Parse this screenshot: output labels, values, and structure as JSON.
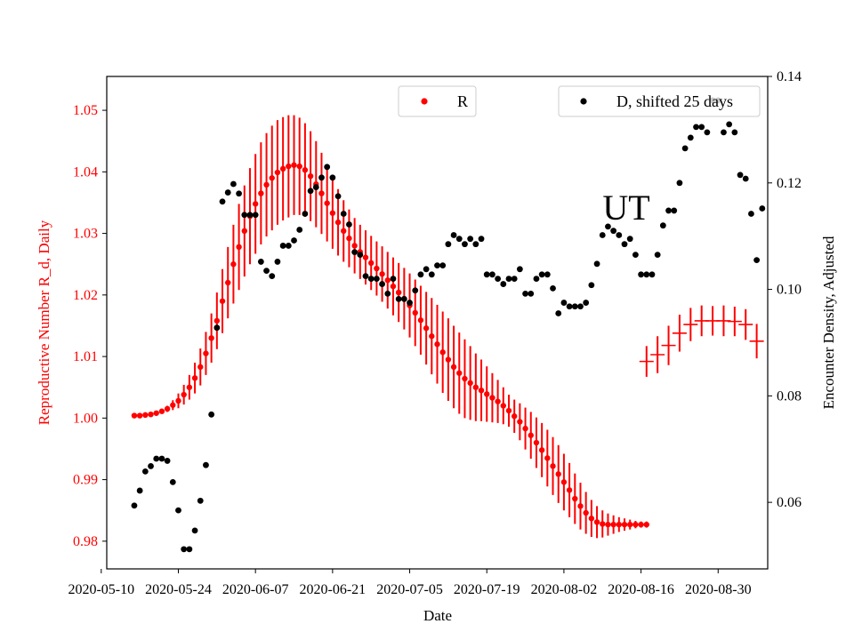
{
  "chart_data": {
    "type": "scatter",
    "xlabel": "Date",
    "ylabel_left": "Reproductive Number R_d, Daily",
    "ylabel_right": "Encounter Density, Adjusted",
    "annotation": "UT",
    "ylim_left": [
      0.9755,
      1.0555
    ],
    "ylim_right": [
      0.0475,
      0.14
    ],
    "xlim": [
      "2020-05-11",
      "2020-09-08"
    ],
    "x_ticks": [
      "2020-05-10",
      "2020-05-24",
      "2020-06-07",
      "2020-06-21",
      "2020-07-05",
      "2020-07-19",
      "2020-08-02",
      "2020-08-16",
      "2020-08-30"
    ],
    "y_ticks_left": [
      "0.98",
      "0.99",
      "1.00",
      "1.01",
      "1.02",
      "1.03",
      "1.04",
      "1.05"
    ],
    "y_ticks_right": [
      "0.06",
      "0.08",
      "0.10",
      "0.12",
      "0.14"
    ],
    "legend_left": "R",
    "legend_right": "D, shifted 25 days",
    "colors": {
      "R": "#ff0000",
      "D": "#000000",
      "left_axis": "#ff0000"
    },
    "r_start": "2020-05-16",
    "r_series_1": {
      "values": [
        1.0004,
        1.0004,
        1.0005,
        1.0006,
        1.0008,
        1.0011,
        1.0015,
        1.0021,
        1.0028,
        1.0038,
        1.005,
        1.0065,
        1.0083,
        1.0105,
        1.013,
        1.0158,
        1.019,
        1.022,
        1.025,
        1.0278,
        1.0304,
        1.0328,
        1.0348,
        1.0365,
        1.0379,
        1.039,
        1.0399,
        1.0405,
        1.0409,
        1.0411,
        1.0409,
        1.0403,
        1.0393,
        1.038,
        1.0365,
        1.0349,
        1.0333,
        1.0318,
        1.0304,
        1.0292,
        1.028,
        1.027,
        1.0261,
        1.0252,
        1.0243,
        1.0234,
        1.0224,
        1.0214,
        1.0204,
        1.0194,
        1.0183,
        1.0171,
        1.0159,
        1.0146,
        1.0133,
        1.012,
        1.0107,
        1.0095,
        1.0083,
        1.0073,
        1.0064,
        1.0057,
        1.005,
        1.0045,
        1.0039,
        1.0033,
        1.0027,
        1.002,
        1.0012,
        1.0003,
        0.9994,
        0.9983,
        0.9972,
        0.996,
        0.9948,
        0.9935,
        0.9922,
        0.9909,
        0.9896,
        0.9883,
        0.9869,
        0.9857,
        0.9846,
        0.9837,
        0.9831,
        0.9828,
        0.9827,
        0.9827,
        0.9827,
        0.9827,
        0.9827,
        0.9827,
        0.9827,
        0.9827
      ],
      "errors": [
        0.0002,
        0.0002,
        0.0002,
        0.0002,
        0.0002,
        0.0003,
        0.0005,
        0.0008,
        0.0012,
        0.0016,
        0.002,
        0.0025,
        0.003,
        0.0035,
        0.004,
        0.0046,
        0.0052,
        0.0058,
        0.0064,
        0.007,
        0.0074,
        0.0078,
        0.0081,
        0.0083,
        0.0084,
        0.0085,
        0.0085,
        0.0084,
        0.0083,
        0.0081,
        0.0079,
        0.0076,
        0.0073,
        0.007,
        0.0066,
        0.0062,
        0.0058,
        0.0054,
        0.005,
        0.0047,
        0.0045,
        0.0044,
        0.0044,
        0.0044,
        0.0044,
        0.0045,
        0.0046,
        0.0047,
        0.0048,
        0.005,
        0.0052,
        0.0054,
        0.0056,
        0.0059,
        0.0062,
        0.0064,
        0.0066,
        0.0067,
        0.0067,
        0.0066,
        0.0064,
        0.006,
        0.0055,
        0.005,
        0.0045,
        0.004,
        0.0035,
        0.003,
        0.0026,
        0.0027,
        0.003,
        0.0034,
        0.0038,
        0.0041,
        0.0044,
        0.0046,
        0.0047,
        0.0047,
        0.0046,
        0.0044,
        0.0041,
        0.0038,
        0.0034,
        0.003,
        0.0026,
        0.0022,
        0.0018,
        0.0015,
        0.0012,
        0.001,
        0.0008,
        0.0006,
        0.0005,
        0.0005
      ]
    },
    "r_series_2": {
      "x": [
        "2020-08-17",
        "2020-08-19",
        "2020-08-21",
        "2020-08-23",
        "2020-08-25",
        "2020-08-27",
        "2020-08-29",
        "2020-08-31",
        "2020-09-02",
        "2020-09-04",
        "2020-09-06"
      ],
      "values": [
        1.0092,
        1.0103,
        1.0118,
        1.0138,
        1.0152,
        1.0158,
        1.0158,
        1.0158,
        1.0157,
        1.0152,
        1.0125
      ],
      "errors": [
        0.0025,
        0.003,
        0.0032,
        0.003,
        0.0027,
        0.0025,
        0.0024,
        0.0025,
        0.0024,
        0.0025,
        0.0028
      ]
    },
    "d_series": [
      {
        "x": "2020-05-16",
        "y": 0.0594
      },
      {
        "x": "2020-05-17",
        "y": 0.0622
      },
      {
        "x": "2020-05-18",
        "y": 0.0658
      },
      {
        "x": "2020-05-19",
        "y": 0.0668
      },
      {
        "x": "2020-05-20",
        "y": 0.0682
      },
      {
        "x": "2020-05-21",
        "y": 0.0682
      },
      {
        "x": "2020-05-22",
        "y": 0.0678
      },
      {
        "x": "2020-05-23",
        "y": 0.0638
      },
      {
        "x": "2020-05-24",
        "y": 0.0585
      },
      {
        "x": "2020-05-25",
        "y": 0.0512
      },
      {
        "x": "2020-05-26",
        "y": 0.0512
      },
      {
        "x": "2020-05-27",
        "y": 0.0547
      },
      {
        "x": "2020-05-28",
        "y": 0.0603
      },
      {
        "x": "2020-05-29",
        "y": 0.067
      },
      {
        "x": "2020-05-30",
        "y": 0.0765
      },
      {
        "x": "2020-05-31",
        "y": 0.0928
      },
      {
        "x": "2020-06-01",
        "y": 0.1165
      },
      {
        "x": "2020-06-02",
        "y": 0.1182
      },
      {
        "x": "2020-06-03",
        "y": 0.1198
      },
      {
        "x": "2020-06-04",
        "y": 0.118
      },
      {
        "x": "2020-06-05",
        "y": 0.114
      },
      {
        "x": "2020-06-06",
        "y": 0.114
      },
      {
        "x": "2020-06-07",
        "y": 0.114
      },
      {
        "x": "2020-06-08",
        "y": 0.1052
      },
      {
        "x": "2020-06-09",
        "y": 0.1035
      },
      {
        "x": "2020-06-10",
        "y": 0.1025
      },
      {
        "x": "2020-06-11",
        "y": 0.1052
      },
      {
        "x": "2020-06-12",
        "y": 0.1082
      },
      {
        "x": "2020-06-13",
        "y": 0.1082
      },
      {
        "x": "2020-06-14",
        "y": 0.1092
      },
      {
        "x": "2020-06-15",
        "y": 0.1112
      },
      {
        "x": "2020-06-16",
        "y": 0.1142
      },
      {
        "x": "2020-06-17",
        "y": 0.1185
      },
      {
        "x": "2020-06-18",
        "y": 0.1192
      },
      {
        "x": "2020-06-19",
        "y": 0.121
      },
      {
        "x": "2020-06-20",
        "y": 0.123
      },
      {
        "x": "2020-06-21",
        "y": 0.121
      },
      {
        "x": "2020-06-22",
        "y": 0.1175
      },
      {
        "x": "2020-06-23",
        "y": 0.1142
      },
      {
        "x": "2020-06-24",
        "y": 0.1122
      },
      {
        "x": "2020-06-25",
        "y": 0.107
      },
      {
        "x": "2020-06-26",
        "y": 0.1065
      },
      {
        "x": "2020-06-27",
        "y": 0.1025
      },
      {
        "x": "2020-06-28",
        "y": 0.102
      },
      {
        "x": "2020-06-29",
        "y": 0.102
      },
      {
        "x": "2020-06-30",
        "y": 0.101
      },
      {
        "x": "2020-07-01",
        "y": 0.0992
      },
      {
        "x": "2020-07-02",
        "y": 0.102
      },
      {
        "x": "2020-07-03",
        "y": 0.0982
      },
      {
        "x": "2020-07-04",
        "y": 0.0982
      },
      {
        "x": "2020-07-05",
        "y": 0.0975
      },
      {
        "x": "2020-07-06",
        "y": 0.0998
      },
      {
        "x": "2020-07-07",
        "y": 0.1028
      },
      {
        "x": "2020-07-08",
        "y": 0.1038
      },
      {
        "x": "2020-07-09",
        "y": 0.1028
      },
      {
        "x": "2020-07-10",
        "y": 0.1045
      },
      {
        "x": "2020-07-11",
        "y": 0.1045
      },
      {
        "x": "2020-07-12",
        "y": 0.1085
      },
      {
        "x": "2020-07-13",
        "y": 0.1102
      },
      {
        "x": "2020-07-14",
        "y": 0.1095
      },
      {
        "x": "2020-07-15",
        "y": 0.1085
      },
      {
        "x": "2020-07-16",
        "y": 0.1095
      },
      {
        "x": "2020-07-17",
        "y": 0.1085
      },
      {
        "x": "2020-07-18",
        "y": 0.1095
      },
      {
        "x": "2020-07-19",
        "y": 0.1028
      },
      {
        "x": "2020-07-20",
        "y": 0.1028
      },
      {
        "x": "2020-07-21",
        "y": 0.102
      },
      {
        "x": "2020-07-22",
        "y": 0.101
      },
      {
        "x": "2020-07-23",
        "y": 0.102
      },
      {
        "x": "2020-07-24",
        "y": 0.102
      },
      {
        "x": "2020-07-25",
        "y": 0.1038
      },
      {
        "x": "2020-07-26",
        "y": 0.0992
      },
      {
        "x": "2020-07-27",
        "y": 0.0992
      },
      {
        "x": "2020-07-28",
        "y": 0.102
      },
      {
        "x": "2020-07-29",
        "y": 0.1028
      },
      {
        "x": "2020-07-30",
        "y": 0.1028
      },
      {
        "x": "2020-07-31",
        "y": 0.1002
      },
      {
        "x": "2020-08-01",
        "y": 0.0955
      },
      {
        "x": "2020-08-02",
        "y": 0.0975
      },
      {
        "x": "2020-08-03",
        "y": 0.0968
      },
      {
        "x": "2020-08-04",
        "y": 0.0968
      },
      {
        "x": "2020-08-05",
        "y": 0.0968
      },
      {
        "x": "2020-08-06",
        "y": 0.0975
      },
      {
        "x": "2020-08-07",
        "y": 0.1008
      },
      {
        "x": "2020-08-08",
        "y": 0.1048
      },
      {
        "x": "2020-08-09",
        "y": 0.1102
      },
      {
        "x": "2020-08-10",
        "y": 0.1118
      },
      {
        "x": "2020-08-11",
        "y": 0.111
      },
      {
        "x": "2020-08-12",
        "y": 0.1102
      },
      {
        "x": "2020-08-13",
        "y": 0.1085
      },
      {
        "x": "2020-08-14",
        "y": 0.1095
      },
      {
        "x": "2020-08-15",
        "y": 0.1065
      },
      {
        "x": "2020-08-16",
        "y": 0.1028
      },
      {
        "x": "2020-08-17",
        "y": 0.1028
      },
      {
        "x": "2020-08-18",
        "y": 0.1028
      },
      {
        "x": "2020-08-19",
        "y": 0.1065
      },
      {
        "x": "2020-08-20",
        "y": 0.112
      },
      {
        "x": "2020-08-21",
        "y": 0.1148
      },
      {
        "x": "2020-08-22",
        "y": 0.1148
      },
      {
        "x": "2020-08-23",
        "y": 0.12
      },
      {
        "x": "2020-08-24",
        "y": 0.1265
      },
      {
        "x": "2020-08-25",
        "y": 0.1285
      },
      {
        "x": "2020-08-26",
        "y": 0.1305
      },
      {
        "x": "2020-08-27",
        "y": 0.1305
      },
      {
        "x": "2020-08-28",
        "y": 0.1295
      },
      {
        "x": "2020-08-29",
        "y": 0.1355
      },
      {
        "x": "2020-08-30",
        "y": 0.1355
      },
      {
        "x": "2020-08-31",
        "y": 0.1295
      },
      {
        "x": "2020-09-01",
        "y": 0.131
      },
      {
        "x": "2020-09-02",
        "y": 0.1295
      },
      {
        "x": "2020-09-03",
        "y": 0.1215
      },
      {
        "x": "2020-09-04",
        "y": 0.1208
      },
      {
        "x": "2020-09-05",
        "y": 0.1142
      },
      {
        "x": "2020-09-06",
        "y": 0.1055
      },
      {
        "x": "2020-09-07",
        "y": 0.1152
      }
    ]
  }
}
